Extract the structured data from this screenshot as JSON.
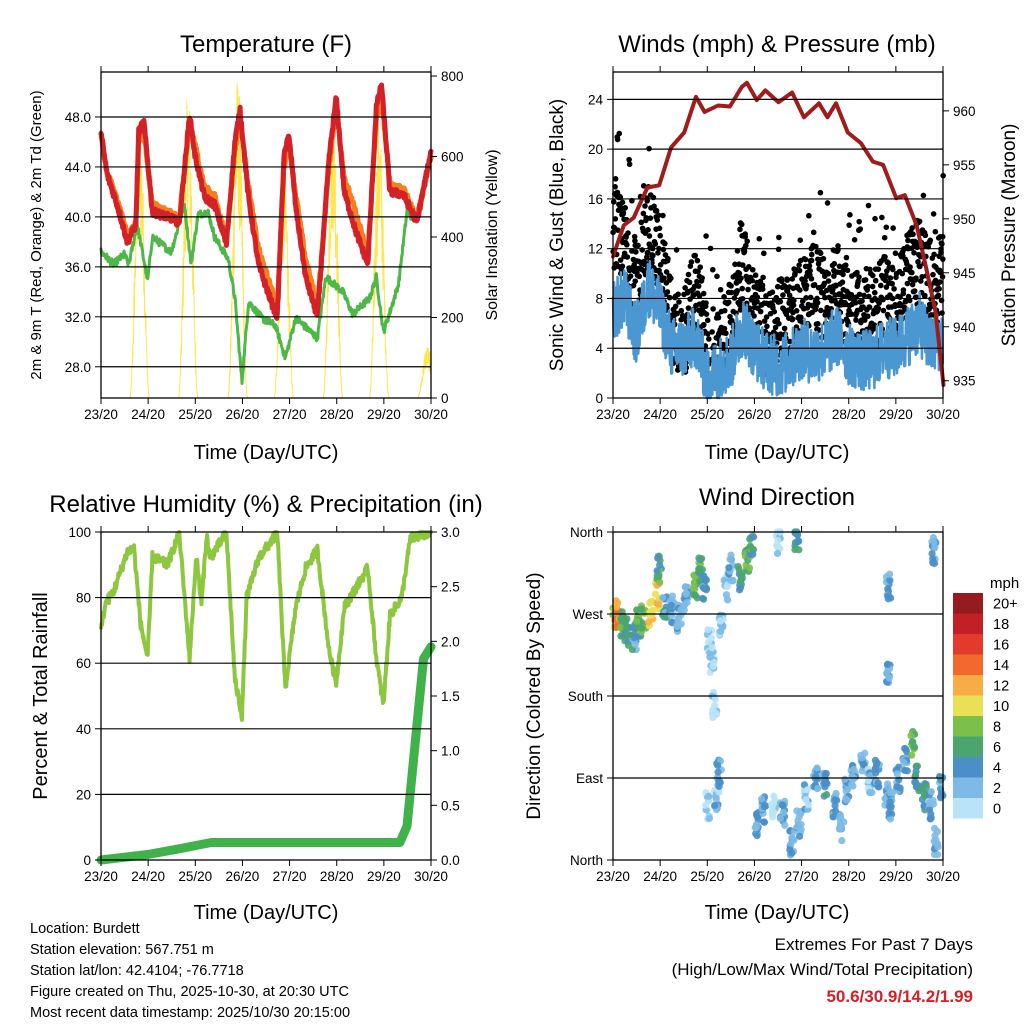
{
  "colors": {
    "temp_2m": "#d42027",
    "temp_9m": "#f47f20",
    "dewpoint": "#4db848",
    "solar": "#fde74c",
    "wind": "#4a97d1",
    "gust": "#000000",
    "pressure": "#a01c1c",
    "rh": "#8dc63f",
    "precip": "#3fb24a"
  },
  "chart_data": [
    {
      "id": "temperature",
      "type": "line",
      "title": "Temperature (F)",
      "xlabel": "Time (Day/UTC)",
      "ylabel": "2m & 9m T (Red, Orange) & 2m Td (Green)",
      "ylabel_right": "Solar Insolation (Yellow)",
      "x_ticks": [
        "23/20",
        "24/20",
        "25/20",
        "26/20",
        "27/20",
        "28/20",
        "29/20",
        "30/20"
      ],
      "xlim_days": [
        0,
        7
      ],
      "y_ticks": [
        "28.0",
        "32.0",
        "36.0",
        "40.0",
        "44.0",
        "48.0"
      ],
      "ylim": [
        25.5,
        51.6
      ],
      "y_right_ticks": [
        "0",
        "200",
        "400",
        "600",
        "800"
      ],
      "ylim_right": [
        0,
        810
      ],
      "grid": true,
      "series": [
        {
          "name": "2m T",
          "color_key": "temp_2m",
          "x": [
            0,
            0.13,
            0.34,
            0.56,
            0.74,
            0.8,
            0.91,
            1.09,
            1.49,
            1.66,
            1.88,
            1.99,
            2.2,
            2.41,
            2.66,
            2.84,
            2.95,
            3.13,
            3.34,
            3.63,
            3.74,
            3.88,
            3.99,
            4.13,
            4.34,
            4.59,
            4.84,
            4.99,
            5.16,
            5.41,
            5.66,
            5.84,
            5.95,
            6.13,
            6.41,
            6.7,
            7.0
          ],
          "y": [
            46.7,
            43.4,
            41,
            38,
            39.4,
            46.8,
            47.6,
            40.4,
            39.9,
            39.5,
            48.2,
            45,
            41.5,
            41,
            37.8,
            46,
            48.6,
            41.5,
            36.2,
            33,
            32,
            44.8,
            46.6,
            40.8,
            35.2,
            32,
            44.8,
            49.6,
            42,
            38.8,
            36.2,
            48.8,
            50.6,
            42,
            41.8,
            39.6,
            45.2
          ]
        },
        {
          "name": "9m T",
          "color_key": "temp_9m",
          "x": [
            0,
            0.13,
            0.34,
            0.56,
            0.74,
            0.8,
            0.91,
            1.09,
            1.49,
            1.66,
            1.88,
            1.99,
            2.2,
            2.41,
            2.66,
            2.84,
            2.95,
            3.13,
            3.34,
            3.63,
            3.74,
            3.88,
            3.99,
            4.13,
            4.34,
            4.59,
            4.84,
            4.99,
            5.16,
            5.41,
            5.66,
            5.84,
            5.95,
            6.13,
            6.41,
            6.7,
            7.0
          ],
          "y": [
            46.5,
            43.6,
            41.3,
            38.5,
            39.6,
            46.2,
            46.8,
            41,
            40.2,
            39.8,
            47.6,
            45.8,
            42.3,
            41.6,
            38.2,
            45.4,
            47.8,
            42.4,
            37.4,
            34,
            32.8,
            44,
            45.8,
            41.8,
            36.6,
            32.8,
            44.2,
            48.8,
            43.2,
            40.2,
            37,
            47.8,
            49.6,
            42.6,
            42.2,
            39.8,
            45
          ]
        },
        {
          "name": "2m Td",
          "color_key": "dewpoint",
          "x": [
            0,
            0.27,
            0.49,
            0.59,
            0.77,
            0.99,
            1.09,
            1.49,
            1.77,
            1.91,
            2.06,
            2.27,
            2.41,
            2.7,
            2.84,
            2.99,
            3.13,
            3.41,
            3.7,
            3.91,
            4.13,
            4.59,
            4.77,
            5.13,
            5.34,
            5.7,
            5.84,
            5.99,
            6.13,
            6.31,
            6.49,
            6.7,
            7.0
          ],
          "y": [
            37.2,
            36.2,
            37,
            36.2,
            39.4,
            34.9,
            38.4,
            37.2,
            41,
            36.2,
            40.2,
            40.4,
            38.4,
            36.6,
            33.5,
            26.8,
            33.2,
            31.9,
            31.3,
            28.7,
            31.9,
            30.3,
            35.2,
            34,
            32.2,
            33.5,
            35.2,
            30.8,
            32.4,
            34.6,
            40.4,
            39.6,
            45
          ]
        },
        {
          "name": "Solar Insolation",
          "color_key": "solar",
          "axis": "right",
          "daily_peak_day": [
            0.82,
            1.85,
            2.9,
            3.88,
            4.92,
            5.9,
            6.92
          ],
          "daily_peak_value": [
            728,
            778,
            810,
            611,
            745,
            700,
            132
          ]
        }
      ]
    },
    {
      "id": "winds",
      "type": "line",
      "title": "Winds (mph) & Pressure (mb)",
      "xlabel": "Time (Day/UTC)",
      "ylabel": "Sonic Wind & Gust (Blue, Black)",
      "ylabel_right": "Station Pressure (Maroon)",
      "x_ticks": [
        "23/20",
        "24/20",
        "25/20",
        "26/20",
        "27/20",
        "28/20",
        "29/20",
        "30/20"
      ],
      "xlim_days": [
        0,
        7
      ],
      "y_ticks": [
        "0",
        "4",
        "8",
        "12",
        "16",
        "20",
        "24"
      ],
      "ylim": [
        0,
        26.2
      ],
      "y_right_ticks": [
        "935",
        "940",
        "945",
        "950",
        "955",
        "960"
      ],
      "ylim_right": [
        933.4,
        963.6
      ],
      "grid": true,
      "series": [
        {
          "name": "Sonic Wind",
          "color_key": "wind",
          "x": [
            0,
            0.25,
            0.5,
            0.75,
            1,
            1.25,
            1.5,
            1.75,
            2,
            2.25,
            2.5,
            2.75,
            3,
            3.25,
            3.5,
            3.75,
            4,
            4.25,
            4.5,
            4.75,
            5,
            5.25,
            5.5,
            5.75,
            6,
            6.25,
            6.5,
            6.75,
            7
          ],
          "y": [
            7,
            8,
            5,
            9,
            7,
            4,
            4,
            5,
            1.5,
            2.5,
            3,
            6,
            4,
            3,
            2.5,
            3,
            4,
            3.5,
            4,
            5,
            3.5,
            3,
            3,
            4,
            4,
            5,
            6,
            4,
            5
          ]
        },
        {
          "name": "Gust",
          "color_key": "gust",
          "x": [
            0,
            0.25,
            0.5,
            0.75,
            1,
            1.25,
            1.5,
            1.75,
            2,
            2.25,
            2.5,
            2.75,
            3,
            3.25,
            3.5,
            3.75,
            4,
            4.25,
            4.5,
            4.75,
            5,
            5.25,
            5.5,
            5.75,
            6,
            6.25,
            6.5,
            6.75,
            7
          ],
          "y": [
            14,
            12,
            9,
            14,
            11,
            6,
            5,
            9,
            4,
            4,
            6,
            11,
            7,
            5,
            6,
            7,
            8,
            9,
            8,
            9,
            7,
            7,
            7,
            8,
            7,
            10,
            11,
            9,
            10
          ]
        },
        {
          "name": "Station Pressure",
          "color_key": "pressure",
          "axis": "right",
          "x": [
            0,
            0.23,
            0.44,
            0.73,
            0.98,
            1.23,
            1.51,
            1.76,
            1.94,
            2.23,
            2.48,
            2.73,
            2.84,
            3.05,
            3.23,
            3.51,
            3.8,
            4.05,
            4.37,
            4.55,
            4.73,
            4.98,
            5.26,
            5.51,
            5.73,
            6.01,
            6.19,
            6.44,
            6.66,
            6.84,
            7.01
          ],
          "y": [
            946.5,
            949.4,
            950.1,
            952.9,
            953.1,
            956.6,
            958,
            961.3,
            959.9,
            960.5,
            960.4,
            962.2,
            962.6,
            961,
            961.9,
            960.8,
            961.7,
            959.4,
            960.7,
            959.4,
            960.7,
            958,
            957,
            955.3,
            955,
            951.9,
            952.2,
            949.4,
            945.1,
            941.4,
            934.6
          ]
        }
      ]
    },
    {
      "id": "humidity",
      "type": "line",
      "title": "Relative Humidity (%) & Precipitation (in)",
      "xlabel": "Time (Day/UTC)",
      "ylabel": "Percent & Total Rainfall",
      "x_ticks": [
        "23/20",
        "24/20",
        "25/20",
        "26/20",
        "27/20",
        "28/20",
        "29/20",
        "30/20"
      ],
      "xlim_days": [
        0,
        7
      ],
      "y_ticks": [
        "0",
        "20",
        "40",
        "60",
        "80",
        "100"
      ],
      "ylim": [
        0,
        100
      ],
      "y_right_ticks": [
        "0.0",
        "0.5",
        "1.0",
        "1.5",
        "2.0",
        "2.5",
        "3.0"
      ],
      "ylim_right": [
        0,
        3.0
      ],
      "grid": true,
      "series": [
        {
          "name": "Relative Humidity",
          "color_key": "rh",
          "x": [
            0,
            0.09,
            0.27,
            0.56,
            0.7,
            0.84,
            0.99,
            1.09,
            1.41,
            1.66,
            1.88,
            2.02,
            2.13,
            2.24,
            2.31,
            2.66,
            2.84,
            2.99,
            3.09,
            3.34,
            3.74,
            3.91,
            4.13,
            4.34,
            4.59,
            4.84,
            4.99,
            5.16,
            5.66,
            5.84,
            5.99,
            6.13,
            6.38,
            6.56,
            7.0
          ],
          "y": [
            70,
            78,
            82,
            94,
            95,
            72,
            61.5,
            92.5,
            90,
            99.7,
            61.5,
            92.9,
            78,
            99,
            92,
            99.7,
            55,
            44,
            80,
            92,
            99.7,
            52,
            77,
            89,
            94.6,
            63.5,
            54,
            77,
            89,
            61.5,
            47,
            74.7,
            80,
            98,
            100
          ]
        },
        {
          "name": "Total Precipitation",
          "color_key": "precip",
          "axis": "right",
          "x": [
            0,
            0.99,
            1.63,
            2.34,
            6.34,
            6.49,
            6.7,
            6.84,
            7.0
          ],
          "y": [
            0,
            0.05,
            0.1,
            0.16,
            0.16,
            0.31,
            1.23,
            1.84,
            1.95
          ]
        }
      ]
    },
    {
      "id": "wind_direction",
      "type": "scatter",
      "title": "Wind Direction",
      "xlabel": "Time (Day/UTC)",
      "ylabel": "Direction (Colored By Speed)",
      "x_ticks": [
        "23/20",
        "24/20",
        "25/20",
        "26/20",
        "27/20",
        "28/20",
        "29/20",
        "30/20"
      ],
      "xlim_days": [
        0,
        7
      ],
      "y_ticks": [
        "North",
        "East",
        "South",
        "West",
        "North"
      ],
      "y_tick_degrees": [
        0,
        90,
        180,
        270,
        360
      ],
      "ylim": [
        0,
        360
      ],
      "colorbar": {
        "title": "mph",
        "labels": [
          "0",
          "2",
          "4",
          "6",
          "8",
          "10",
          "12",
          "14",
          "16",
          "18",
          "20+"
        ],
        "colors": [
          "#b9e3f8",
          "#7dbbe6",
          "#4a8fc8",
          "#4aa66e",
          "#7cc04a",
          "#e8e055",
          "#f8ac45",
          "#f26a2b",
          "#e23b2a",
          "#c21f26",
          "#951b1e"
        ]
      },
      "points_day_deg_mph": [
        [
          0.05,
          262,
          10
        ],
        [
          0.1,
          270,
          14
        ],
        [
          0.2,
          258,
          7
        ],
        [
          0.3,
          250,
          6
        ],
        [
          0.45,
          245,
          5
        ],
        [
          0.55,
          260,
          7
        ],
        [
          0.65,
          265,
          9
        ],
        [
          0.8,
          272,
          11
        ],
        [
          0.95,
          290,
          12
        ],
        [
          0.98,
          320,
          7
        ],
        [
          1.1,
          280,
          5
        ],
        [
          1.25,
          275,
          4
        ],
        [
          1.4,
          265,
          3
        ],
        [
          1.55,
          285,
          4
        ],
        [
          1.75,
          300,
          8
        ],
        [
          1.85,
          320,
          7
        ],
        [
          1.95,
          300,
          5
        ],
        [
          2.05,
          240,
          2
        ],
        [
          2.1,
          220,
          2
        ],
        [
          2.15,
          170,
          1
        ],
        [
          2.3,
          255,
          2
        ],
        [
          2.4,
          300,
          2
        ],
        [
          2.5,
          320,
          3
        ],
        [
          2.7,
          310,
          6
        ],
        [
          2.85,
          330,
          8
        ],
        [
          2.95,
          345,
          7
        ],
        [
          2.0,
          60,
          2
        ],
        [
          2.2,
          70,
          3
        ],
        [
          2.25,
          95,
          4
        ],
        [
          3.05,
          40,
          4
        ],
        [
          3.2,
          55,
          4
        ],
        [
          3.4,
          60,
          1
        ],
        [
          3.6,
          50,
          4
        ],
        [
          3.8,
          20,
          4
        ],
        [
          3.95,
          40,
          3
        ],
        [
          3.5,
          350,
          1
        ],
        [
          3.9,
          355,
          6
        ],
        [
          4.1,
          70,
          3
        ],
        [
          4.3,
          90,
          4
        ],
        [
          4.5,
          85,
          5
        ],
        [
          4.7,
          60,
          4
        ],
        [
          4.85,
          35,
          3
        ],
        [
          4.95,
          75,
          4
        ],
        [
          5.1,
          90,
          4
        ],
        [
          5.3,
          110,
          4
        ],
        [
          5.45,
          85,
          3
        ],
        [
          5.6,
          95,
          5
        ],
        [
          5.8,
          75,
          4
        ],
        [
          5.85,
          300,
          4
        ],
        [
          5.85,
          200,
          4
        ],
        [
          5.9,
          60,
          4
        ],
        [
          6.05,
          90,
          4
        ],
        [
          6.2,
          110,
          4
        ],
        [
          6.35,
          130,
          8
        ],
        [
          6.45,
          90,
          6
        ],
        [
          6.6,
          70,
          6
        ],
        [
          6.75,
          60,
          4
        ],
        [
          6.85,
          20,
          3
        ],
        [
          6.95,
          80,
          5
        ],
        [
          6.8,
          340,
          4
        ]
      ]
    }
  ],
  "footer": {
    "location": "Location: Burdett",
    "elevation": "Station elevation: 567.751 m",
    "latlon": "Station lat/lon: 42.4104; -76.7718",
    "created": "Figure created on Thu, 2025-10-30, at 20:30 UTC",
    "recent": "Most recent data timestamp: 2025/10/30 20:15:00"
  },
  "extremes": {
    "title": "Extremes For Past 7 Days",
    "subtitle": "(High/Low/Max Wind/Total Precipitation)",
    "values": "50.6/30.9/14.2/1.99"
  }
}
